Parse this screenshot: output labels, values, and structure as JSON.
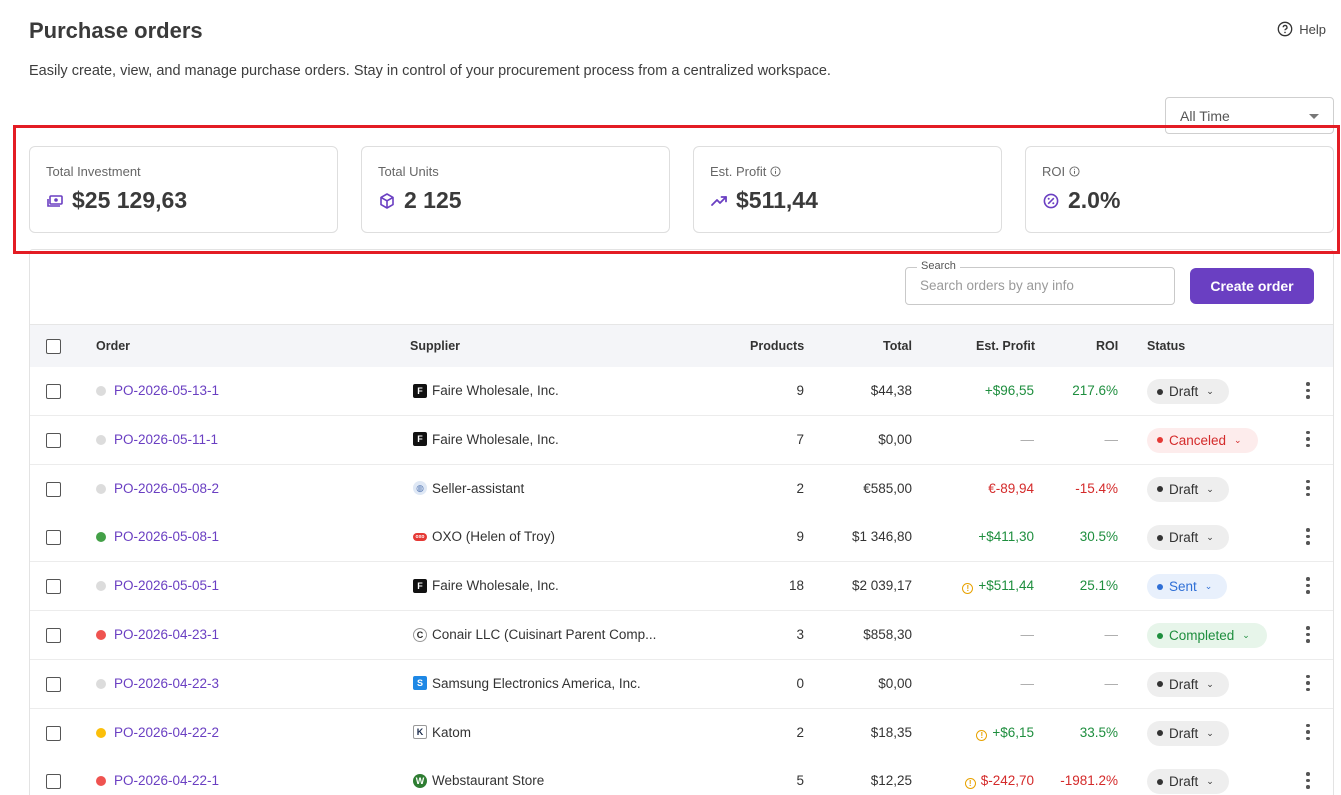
{
  "header": {
    "title": "Purchase orders",
    "help_label": "Help",
    "subtitle": "Easily create, view, and manage purchase orders. Stay in control of your procurement process from a centralized workspace."
  },
  "filter": {
    "period": "All Time"
  },
  "cards": {
    "investment": {
      "label": "Total Investment",
      "value": "$25 129,63"
    },
    "units": {
      "label": "Total Units",
      "value": "2 125"
    },
    "profit": {
      "label": "Est. Profit",
      "value": "$511,44"
    },
    "roi": {
      "label": "ROI",
      "value": "2.0%"
    }
  },
  "search": {
    "legend": "Search",
    "placeholder": "Search orders by any info"
  },
  "create_label": "Create order",
  "table": {
    "columns": {
      "order": "Order",
      "supplier": "Supplier",
      "products": "Products",
      "total": "Total",
      "profit": "Est. Profit",
      "roi": "ROI",
      "status": "Status"
    },
    "rows": [
      {
        "order": "PO-2026-05-13-1",
        "supplier": "Faire Wholesale, Inc.",
        "products": "9",
        "total": "$44,38",
        "profit": "+$96,55",
        "roi": "217.6%",
        "status": "Draft"
      },
      {
        "order": "PO-2026-05-11-1",
        "supplier": "Faire Wholesale, Inc.",
        "products": "7",
        "total": "$0,00",
        "profit": "—",
        "roi": "—",
        "status": "Canceled"
      },
      {
        "order": "PO-2026-05-08-2",
        "supplier": "Seller-assistant",
        "products": "2",
        "total": "€585,00",
        "profit": "€-89,94",
        "roi": "-15.4%",
        "status": "Draft"
      },
      {
        "order": "PO-2026-05-08-1",
        "supplier": "OXO (Helen of Troy)",
        "products": "9",
        "total": "$1 346,80",
        "profit": "+$411,30",
        "roi": "30.5%",
        "status": "Draft"
      },
      {
        "order": "PO-2026-05-05-1",
        "supplier": "Faire Wholesale, Inc.",
        "products": "18",
        "total": "$2 039,17",
        "profit": "+$511,44",
        "roi": "25.1%",
        "status": "Sent"
      },
      {
        "order": "PO-2026-04-23-1",
        "supplier": "Conair LLC (Cuisinart Parent Comp...",
        "products": "3",
        "total": "$858,30",
        "profit": "—",
        "roi": "—",
        "status": "Completed"
      },
      {
        "order": "PO-2026-04-22-3",
        "supplier": "Samsung Electronics America, Inc.",
        "products": "0",
        "total": "$0,00",
        "profit": "—",
        "roi": "—",
        "status": "Draft"
      },
      {
        "order": "PO-2026-04-22-2",
        "supplier": "Katom",
        "products": "2",
        "total": "$18,35",
        "profit": "+$6,15",
        "roi": "33.5%",
        "status": "Draft"
      },
      {
        "order": "PO-2026-04-22-1",
        "supplier": "Webstaurant Store",
        "products": "5",
        "total": "$12,25",
        "profit": "$-242,70",
        "roi": "-1981.2%",
        "status": "Draft"
      }
    ]
  },
  "icons": {
    "help": "help-circle-icon",
    "investment": "money-icon",
    "units": "cube-icon",
    "profit": "trending-up-icon",
    "roi": "percent-badge-icon",
    "info": "info-icon",
    "warning": "warning-icon",
    "more": "more-vertical-icon"
  },
  "colors": {
    "accent": "#6a3fc2",
    "positive": "#1e8e3e",
    "negative": "#d42a2a",
    "highlight": "#e31c24"
  }
}
